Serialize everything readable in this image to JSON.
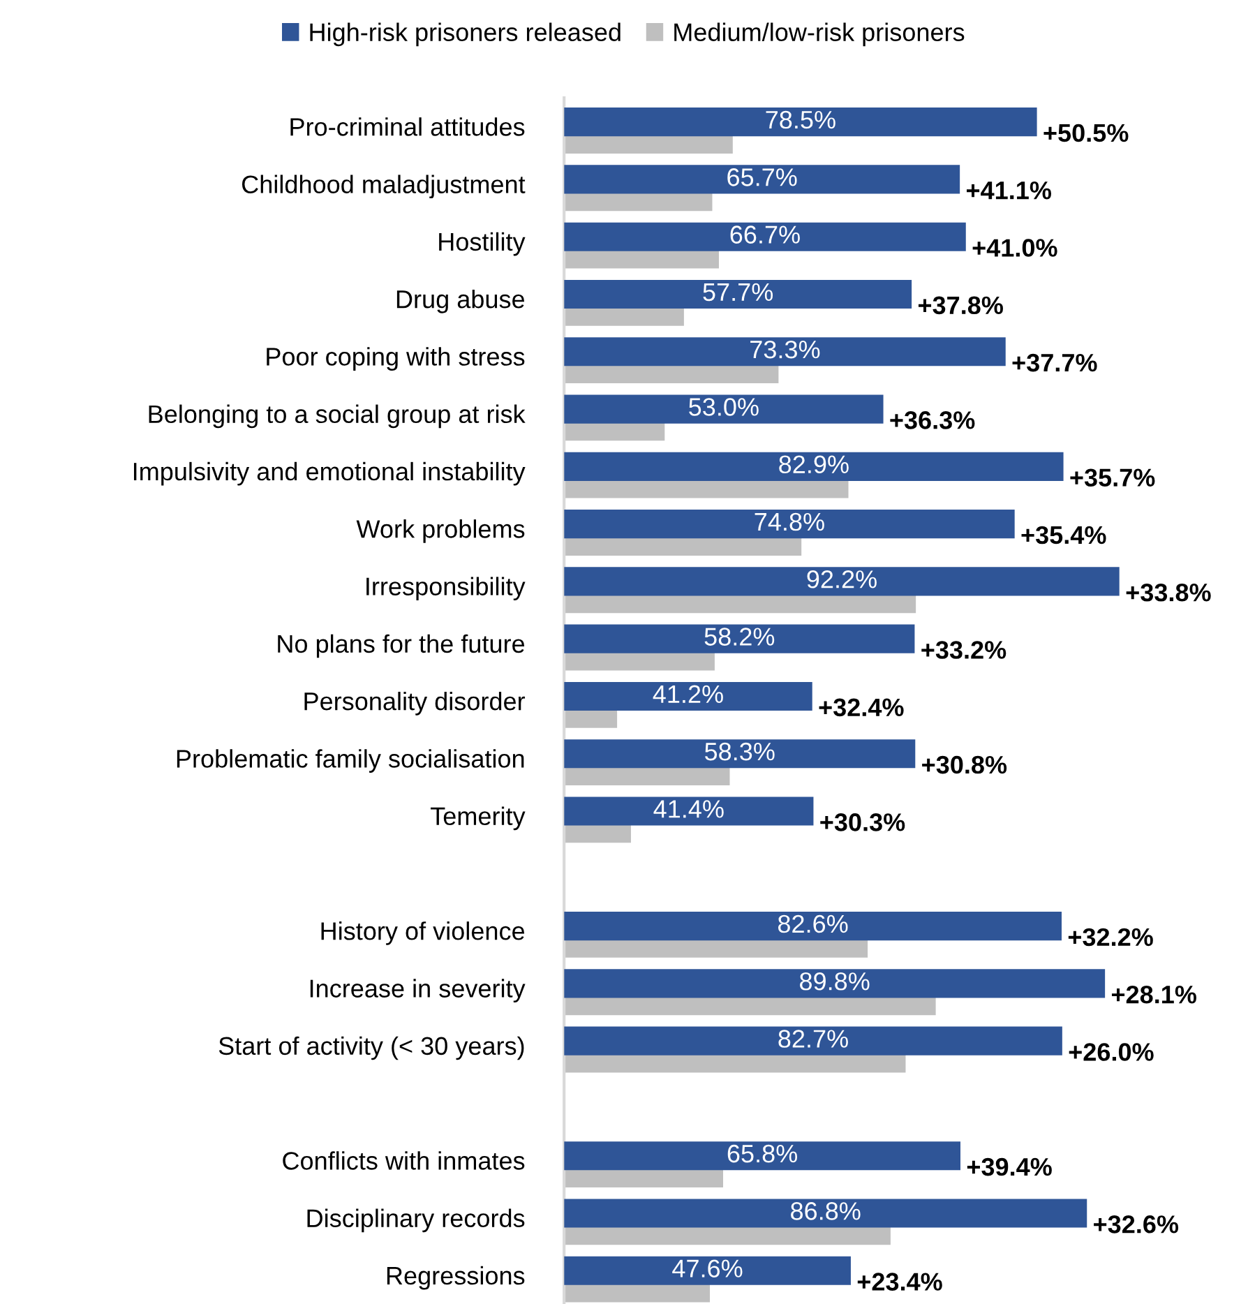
{
  "chart_data": {
    "type": "bar",
    "orientation": "horizontal",
    "categories": [
      "Pro-criminal attitudes",
      "Childhood maladjustment",
      "Hostility",
      "Drug abuse",
      "Poor coping with stress",
      "Belonging to a social group at risk",
      "Impulsivity and emotional instability",
      "Work problems",
      "Irresponsibility",
      "No plans for the future",
      "Personality disorder",
      "Problematic family socialisation",
      "Temerity",
      null,
      "History of violence",
      "Increase in severity",
      "Start of activity (< 30 years)",
      null,
      "Conflicts with inmates",
      "Disciplinary records",
      "Regressions"
    ],
    "series": [
      {
        "name": "High-risk prisoners released",
        "color": "#2f5597",
        "values": [
          78.5,
          65.7,
          66.7,
          57.7,
          73.3,
          53.0,
          82.9,
          74.8,
          92.2,
          58.2,
          41.2,
          58.3,
          41.4,
          null,
          82.6,
          89.8,
          82.7,
          null,
          65.8,
          86.8,
          47.6
        ],
        "value_labels": [
          "78.5%",
          "65.7%",
          "66.7%",
          "57.7%",
          "73.3%",
          "53.0%",
          "82.9%",
          "74.8%",
          "92.2%",
          "58.2%",
          "41.2%",
          "58.3%",
          "41.4%",
          null,
          "82.6%",
          "89.8%",
          "82.7%",
          null,
          "65.8%",
          "86.8%",
          "47.6%"
        ]
      },
      {
        "name": "Medium/low-risk prisoners",
        "color": "#bfbfbf",
        "values": [
          28.0,
          24.6,
          25.7,
          19.9,
          35.6,
          16.7,
          47.2,
          39.4,
          58.4,
          25.0,
          8.8,
          27.5,
          11.1,
          null,
          50.4,
          61.7,
          56.7,
          null,
          26.4,
          54.2,
          24.2
        ]
      }
    ],
    "relative": false,
    "annotations": [
      {
        "text": "+50.5%",
        "x": 78.5,
        "y": "Pro-criminal attitudes"
      },
      {
        "text": "+41.1%",
        "x": 65.7,
        "y": "Childhood maladjustment"
      },
      {
        "text": "+41.0%",
        "x": 66.7,
        "y": "Hostility"
      },
      {
        "text": "+37.8%",
        "x": 57.7,
        "y": "Drug abuse"
      },
      {
        "text": "+37.7%",
        "x": 73.3,
        "y": "Poor coping with stress"
      },
      {
        "text": "+36.3%",
        "x": 53.0,
        "y": "Belonging to a social group at risk"
      },
      {
        "text": "+35.7%",
        "x": 82.9,
        "y": "Impulsivity and emotional instability"
      },
      {
        "text": "+35.4%",
        "x": 74.8,
        "y": "Work problems"
      },
      {
        "text": "+33.8%",
        "x": 92.2,
        "y": "Irresponsibility"
      },
      {
        "text": "+33.2%",
        "x": 58.2,
        "y": "No plans for the future"
      },
      {
        "text": "+32.4%",
        "x": 41.2,
        "y": "Personality disorder"
      },
      {
        "text": "+30.8%",
        "x": 58.3,
        "y": "Problematic family socialisation"
      },
      {
        "text": "+30.3%",
        "x": 41.4,
        "y": "Temerity"
      },
      {
        "text": "+32.2%",
        "x": 82.6,
        "y": "History of violence"
      },
      {
        "text": "+28.1%",
        "x": 89.8,
        "y": "Increase in severity"
      },
      {
        "text": "+26.0%",
        "x": 82.7,
        "y": "Start of activity (< 30 years)"
      },
      {
        "text": "+39.4%",
        "x": 65.8,
        "y": "Conflicts with inmates"
      },
      {
        "text": "+32.6%",
        "x": 86.8,
        "y": "Disciplinary records"
      },
      {
        "text": "+23.4%",
        "x": 47.6,
        "y": "Regressions"
      }
    ],
    "legend": "top",
    "grid": false
  }
}
